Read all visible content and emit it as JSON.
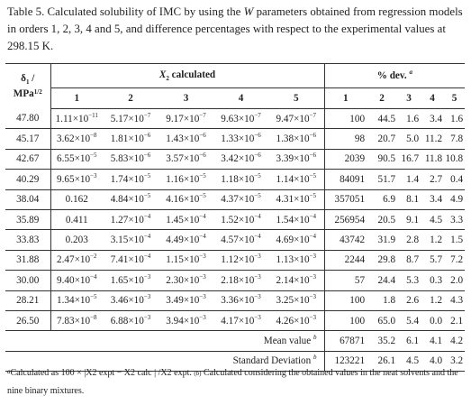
{
  "caption": {
    "prefix": "Table 5. Calculated solubility of IMC by using the ",
    "w": "W",
    "suffix": " parameters obtained from regression models in orders 1, 2, 3, 4 and 5, and difference percentages with respect to the experimental values at 298.15 K."
  },
  "header": {
    "delta_label": "δ",
    "delta_sub": "1",
    "delta_slash": " /",
    "delta_unit": "MPa",
    "delta_unit_sup": "1/2",
    "x2_group_x": "X",
    "x2_group_sub": "2",
    "x2_group_rest": " calculated",
    "dev_group": "% dev.",
    "dev_group_sup": "a",
    "orders": [
      "1",
      "2",
      "3",
      "4",
      "5"
    ]
  },
  "rows": [
    {
      "delta": "47.80",
      "x": [
        [
          "1.11",
          "−11"
        ],
        [
          "5.17",
          "−7"
        ],
        [
          "9.17",
          "−7"
        ],
        [
          "9.63",
          "−7"
        ],
        [
          "9.47",
          "−7"
        ]
      ],
      "dev": [
        "100",
        "44.5",
        "1.6",
        "3.4",
        "1.6"
      ]
    },
    {
      "delta": "45.17",
      "x": [
        [
          "3.62",
          "−8"
        ],
        [
          "1.81",
          "−6"
        ],
        [
          "1.43",
          "−6"
        ],
        [
          "1.33",
          "−6"
        ],
        [
          "1.38",
          "−6"
        ]
      ],
      "dev": [
        "98",
        "20.7",
        "5.0",
        "11.2",
        "7.8"
      ]
    },
    {
      "delta": "42.67",
      "x": [
        [
          "6.55",
          "−5"
        ],
        [
          "5.83",
          "−6"
        ],
        [
          "3.57",
          "−6"
        ],
        [
          "3.42",
          "−6"
        ],
        [
          "3.39",
          "−6"
        ]
      ],
      "dev": [
        "2039",
        "90.5",
        "16.7",
        "11.8",
        "10.8"
      ]
    },
    {
      "delta": "40.29",
      "x": [
        [
          "9.65",
          "−3"
        ],
        [
          "1.74",
          "−5"
        ],
        [
          "1.16",
          "−5"
        ],
        [
          "1.18",
          "−5"
        ],
        [
          "1.14",
          "−5"
        ]
      ],
      "dev": [
        "84091",
        "51.7",
        "1.4",
        "2.7",
        "0.4"
      ]
    },
    {
      "delta": "38.04",
      "x": [
        [
          "0.162",
          ""
        ],
        [
          "4.84",
          "−5"
        ],
        [
          "4.16",
          "−5"
        ],
        [
          "4.37",
          "−5"
        ],
        [
          "4.31",
          "−5"
        ]
      ],
      "dev": [
        "357051",
        "6.9",
        "8.1",
        "3.4",
        "4.9"
      ]
    },
    {
      "delta": "35.89",
      "x": [
        [
          "0.411",
          ""
        ],
        [
          "1.27",
          "−4"
        ],
        [
          "1.45",
          "−4"
        ],
        [
          "1.52",
          "−4"
        ],
        [
          "1.54",
          "−4"
        ]
      ],
      "dev": [
        "256954",
        "20.5",
        "9.1",
        "4.5",
        "3.3"
      ]
    },
    {
      "delta": "33.83",
      "x": [
        [
          "0.203",
          ""
        ],
        [
          "3.15",
          "−4"
        ],
        [
          "4.49",
          "−4"
        ],
        [
          "4.57",
          "−4"
        ],
        [
          "4.69",
          "−4"
        ]
      ],
      "dev": [
        "43742",
        "31.9",
        "2.8",
        "1.2",
        "1.5"
      ]
    },
    {
      "delta": "31.88",
      "x": [
        [
          "2.47",
          "−2"
        ],
        [
          "7.41",
          "−4"
        ],
        [
          "1.15",
          "−3"
        ],
        [
          "1.12",
          "−3"
        ],
        [
          "1.13",
          "−3"
        ]
      ],
      "dev": [
        "2244",
        "29.8",
        "8.7",
        "5.7",
        "7.2"
      ]
    },
    {
      "delta": "30.00",
      "x": [
        [
          "9.40",
          "−4"
        ],
        [
          "1.65",
          "−3"
        ],
        [
          "2.30",
          "−3"
        ],
        [
          "2.18",
          "−3"
        ],
        [
          "2.14",
          "−3"
        ]
      ],
      "dev": [
        "57",
        "24.4",
        "5.3",
        "0.3",
        "2.0"
      ]
    },
    {
      "delta": "28.21",
      "x": [
        [
          "1.34",
          "−5"
        ],
        [
          "3.46",
          "−3"
        ],
        [
          "3.49",
          "−3"
        ],
        [
          "3.36",
          "−3"
        ],
        [
          "3.25",
          "−3"
        ]
      ],
      "dev": [
        "100",
        "1.8",
        "2.6",
        "1.2",
        "4.3"
      ]
    },
    {
      "delta": "26.50",
      "x": [
        [
          "7.83",
          "−8"
        ],
        [
          "6.88",
          "−3"
        ],
        [
          "3.94",
          "−3"
        ],
        [
          "4.17",
          "−3"
        ],
        [
          "4.26",
          "−3"
        ]
      ],
      "dev": [
        "100",
        "65.0",
        "5.4",
        "0.0",
        "2.1"
      ]
    }
  ],
  "times_ten": "×10",
  "summary": [
    {
      "label": "Mean value",
      "sup": "b",
      "values": [
        "67871",
        "35.2",
        "6.1",
        "4.1",
        "4.2"
      ]
    },
    {
      "label": "Standard Deviation",
      "sup": "b",
      "values": [
        "123221",
        "26.1",
        "4.5",
        "4.0",
        "3.2"
      ]
    }
  ],
  "footnote": {
    "a_marker": "a",
    "a_text": "Calculated as 100 × |X2 expt − X2 calc | /X2 expt.",
    "b_marker": "(b)",
    "b_text": "Calculated considering the obtained values in the neat solvents and the nine binary mixtures."
  }
}
